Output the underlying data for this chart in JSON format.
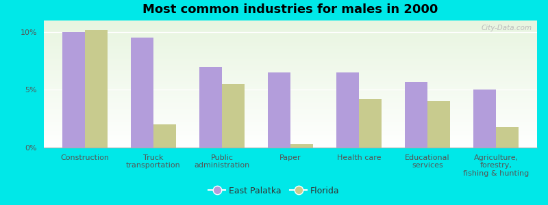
{
  "title": "Most common industries for males in 2000",
  "categories": [
    "Construction",
    "Truck\ntransportation",
    "Public\nadministration",
    "Paper",
    "Health care",
    "Educational\nservices",
    "Agriculture,\nforestry,\nfishing & hunting"
  ],
  "east_palatka": [
    10.0,
    9.5,
    7.0,
    6.5,
    6.5,
    5.7,
    5.0
  ],
  "florida": [
    10.2,
    2.0,
    5.5,
    0.3,
    4.2,
    4.0,
    1.8
  ],
  "bar_color_ep": "#b39ddb",
  "bar_color_fl": "#c8cb8e",
  "background_outer": "#00e8e8",
  "background_inner_top": "#ffffff",
  "background_inner_bottom": "#e8f5e0",
  "ylabel_ticks": [
    "0%",
    "5%",
    "10%"
  ],
  "yticks": [
    0,
    5,
    10
  ],
  "ylim": [
    0,
    11
  ],
  "legend_ep": "East Palatka",
  "legend_fl": "Florida",
  "title_fontsize": 13,
  "tick_fontsize": 8,
  "legend_fontsize": 9,
  "watermark": "City-Data.com"
}
